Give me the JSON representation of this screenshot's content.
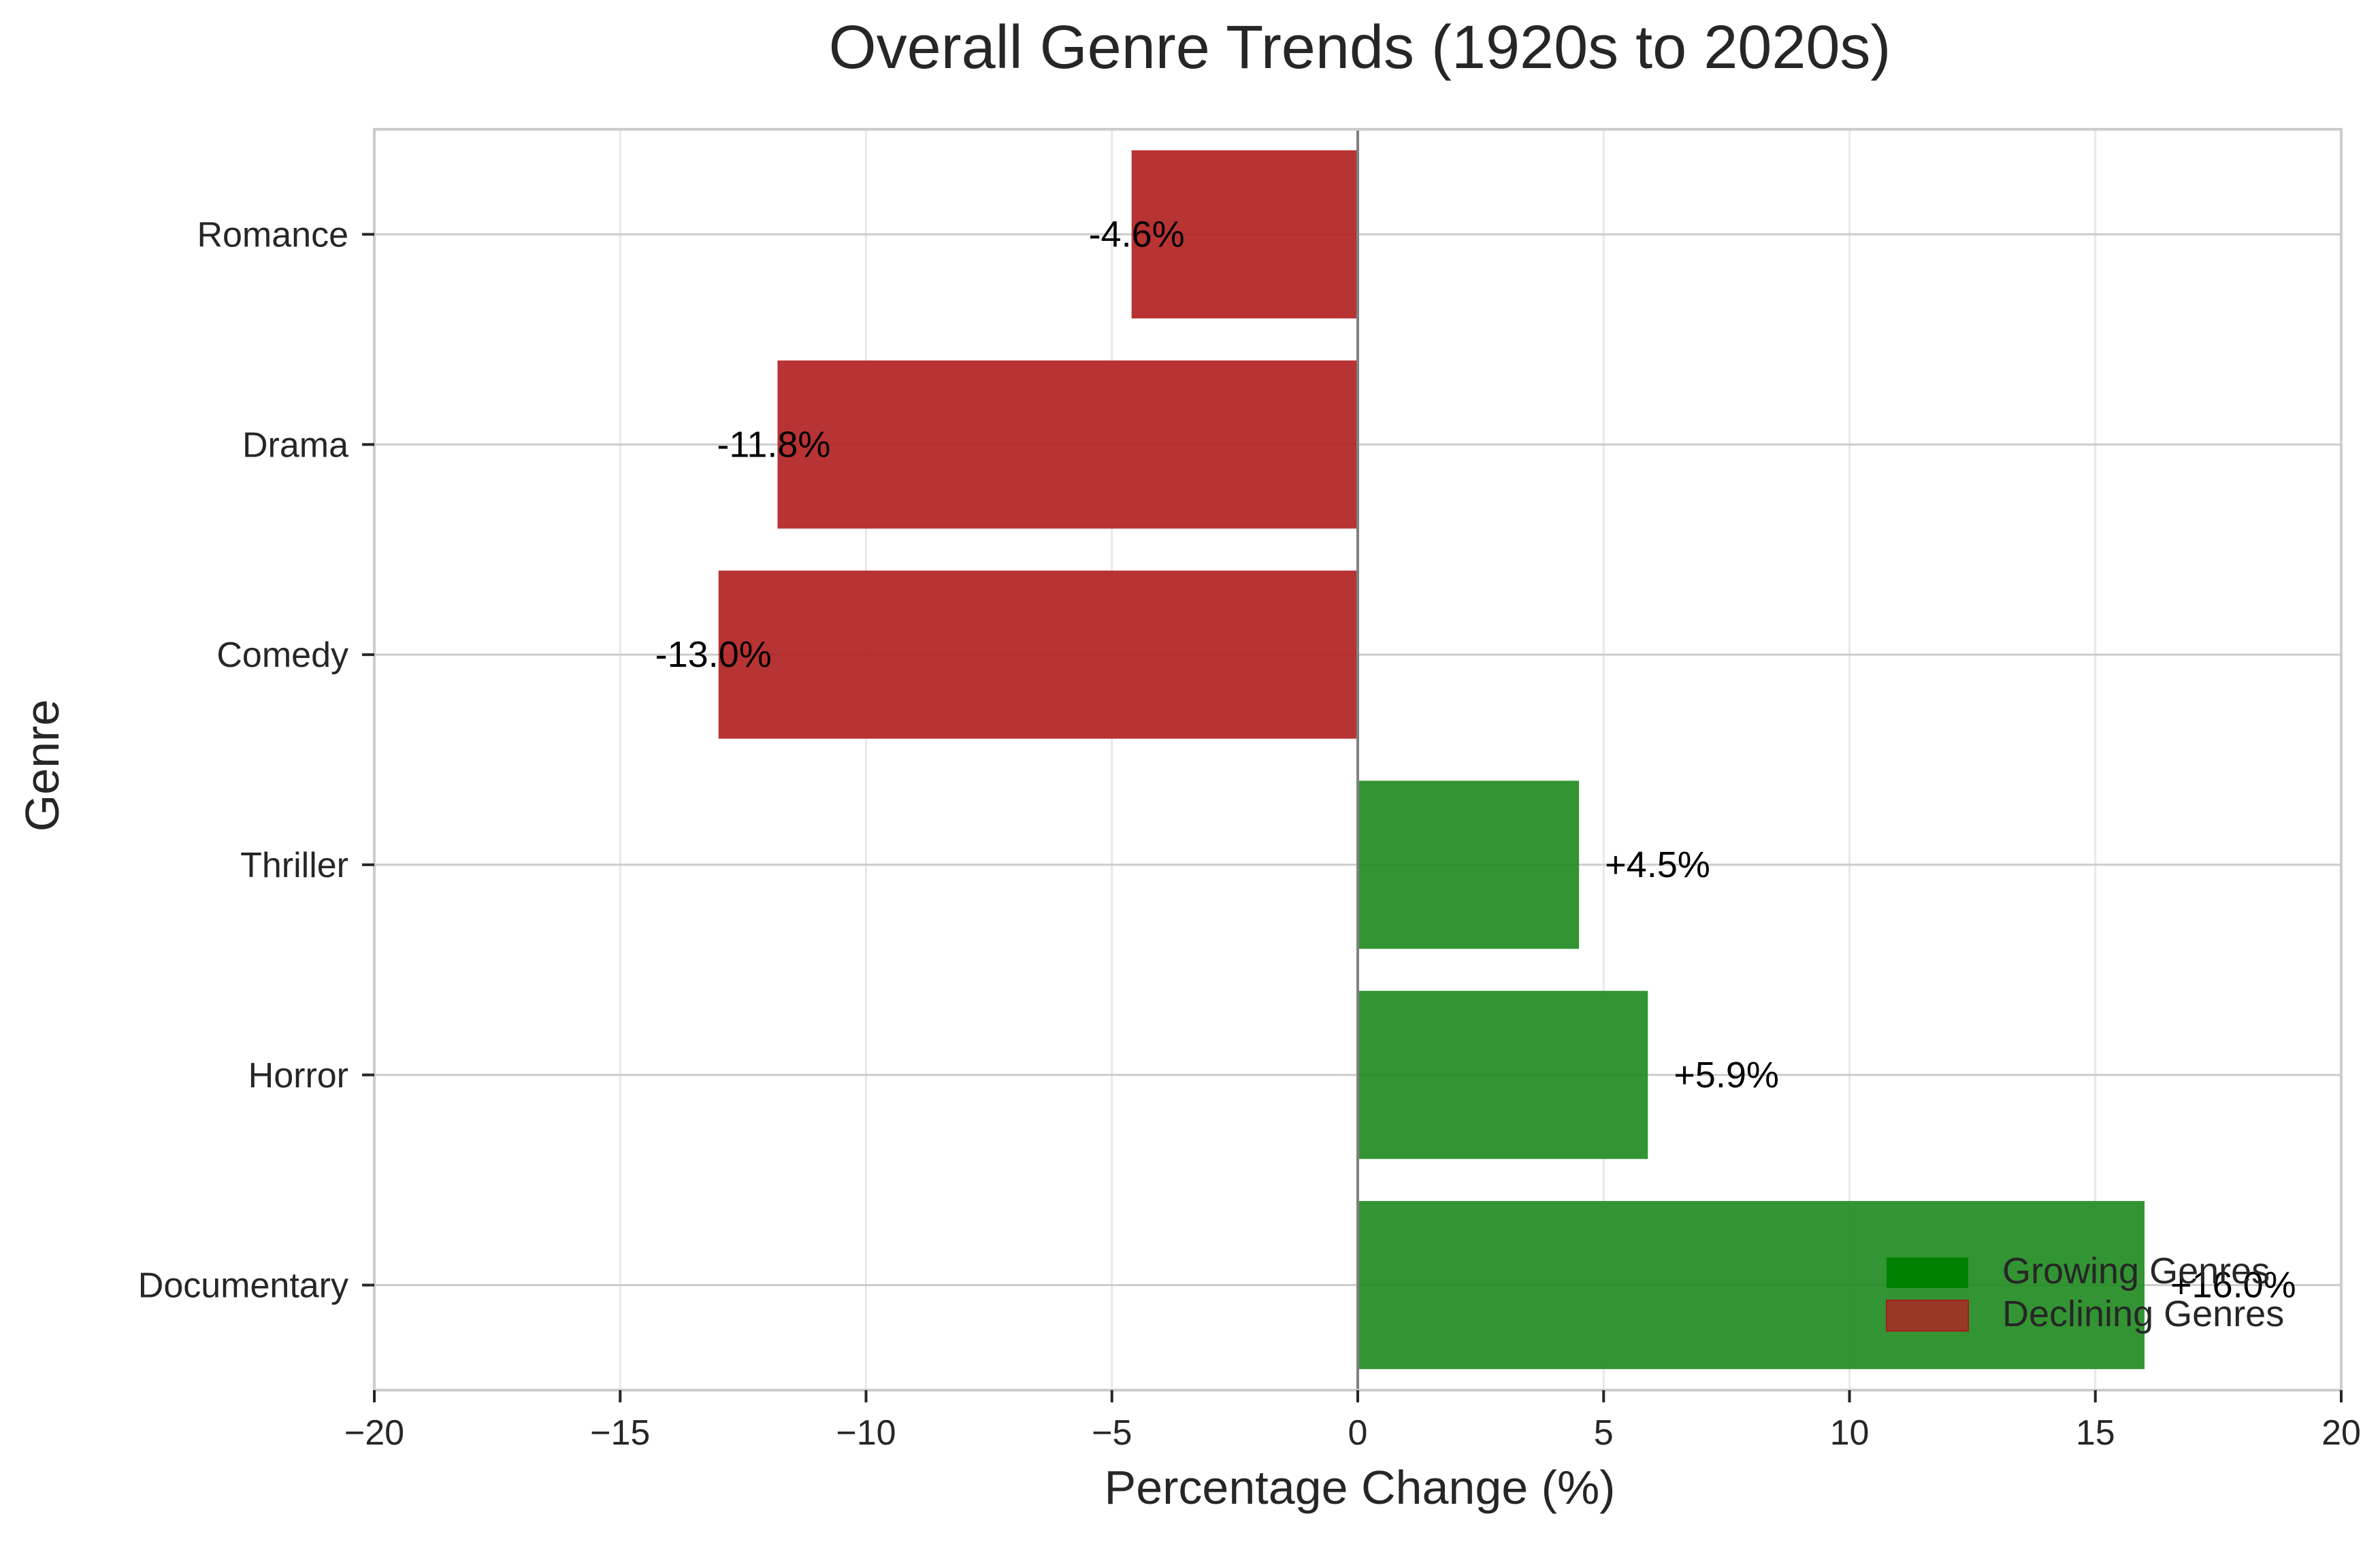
{
  "chart_data": {
    "type": "bar",
    "orientation": "horizontal",
    "title": "Overall Genre Trends (1920s to 2020s)",
    "xlabel": "Percentage Change (%)",
    "ylabel": "Genre",
    "xlim": [
      -20,
      20
    ],
    "xticks": [
      -20,
      -15,
      -10,
      -5,
      0,
      5,
      10,
      15,
      20
    ],
    "xtick_labels": [
      "−20",
      "−15",
      "−10",
      "−5",
      "0",
      "5",
      "10",
      "15",
      "20"
    ],
    "categories": [
      "Documentary",
      "Horror",
      "Thriller",
      "Comedy",
      "Drama",
      "Romance"
    ],
    "values": [
      16.0,
      5.9,
      4.5,
      -13.0,
      -11.8,
      -4.6
    ],
    "data_labels": [
      "+16.0%",
      "+5.9%",
      "+4.5%",
      "-13.0%",
      "-11.8%",
      "-4.6%"
    ],
    "grid": true,
    "legend": {
      "placement": "lower-right",
      "entries": [
        {
          "name": "Growing Genres",
          "color": "#008000"
        },
        {
          "name": "Declining Genres",
          "color": "#b22222"
        }
      ]
    },
    "colors": {
      "growing": "#228b22",
      "declining": "#b22222",
      "zero_line": "#808080",
      "grid": "#cccccc",
      "frame": "#cccccc"
    }
  }
}
